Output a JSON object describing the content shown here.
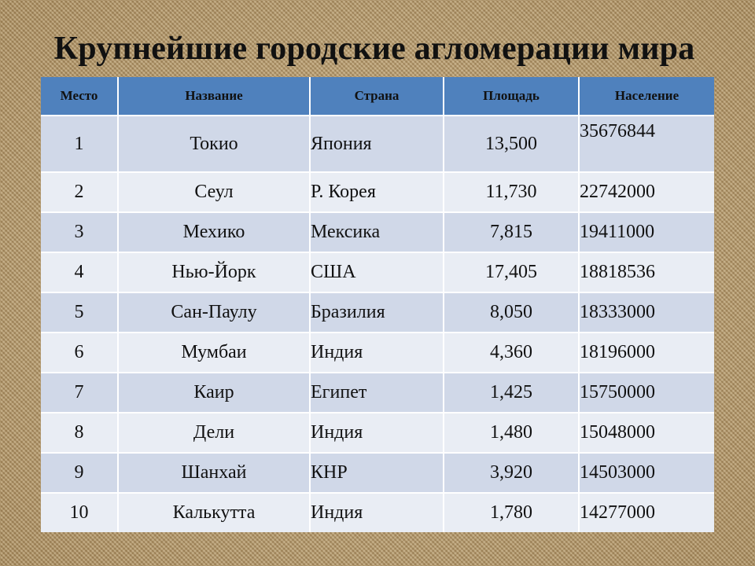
{
  "title": "Крупнейшие городские агломерации мира",
  "headers": {
    "rank": "Место",
    "name": "Название",
    "country": "Страна",
    "area": "Площадь",
    "population": "Население"
  },
  "rows": [
    {
      "rank": "1",
      "name": "Токио",
      "country": "Япония",
      "area": "13,500",
      "population": "35676844"
    },
    {
      "rank": "2",
      "name": "Сеул",
      "country": "Р. Корея",
      "area": "11,730",
      "population": "22742000"
    },
    {
      "rank": "3",
      "name": "Мехико",
      "country": "Мексика",
      "area": "7,815",
      "population": "19411000"
    },
    {
      "rank": "4",
      "name": "Нью-Йорк",
      "country": "США",
      "area": "17,405",
      "population": "18818536"
    },
    {
      "rank": "5",
      "name": "Сан-Паулу",
      "country": "Бразилия",
      "area": "8,050",
      "population": "18333000"
    },
    {
      "rank": "6",
      "name": "Мумбаи",
      "country": "Индия",
      "area": "4,360",
      "population": "18196000"
    },
    {
      "rank": "7",
      "name": "Каир",
      "country": "Египет",
      "area": "1,425",
      "population": "15750000"
    },
    {
      "rank": "8",
      "name": "Дели",
      "country": "Индия",
      "area": "1,480",
      "population": "15048000"
    },
    {
      "rank": "9",
      "name": "Шанхай",
      "country": "КНР",
      "area": "3,920",
      "population": "14503000"
    },
    {
      "rank": "10",
      "name": "Калькутта",
      "country": "Индия",
      "area": "1,780",
      "population": "14277000"
    }
  ]
}
